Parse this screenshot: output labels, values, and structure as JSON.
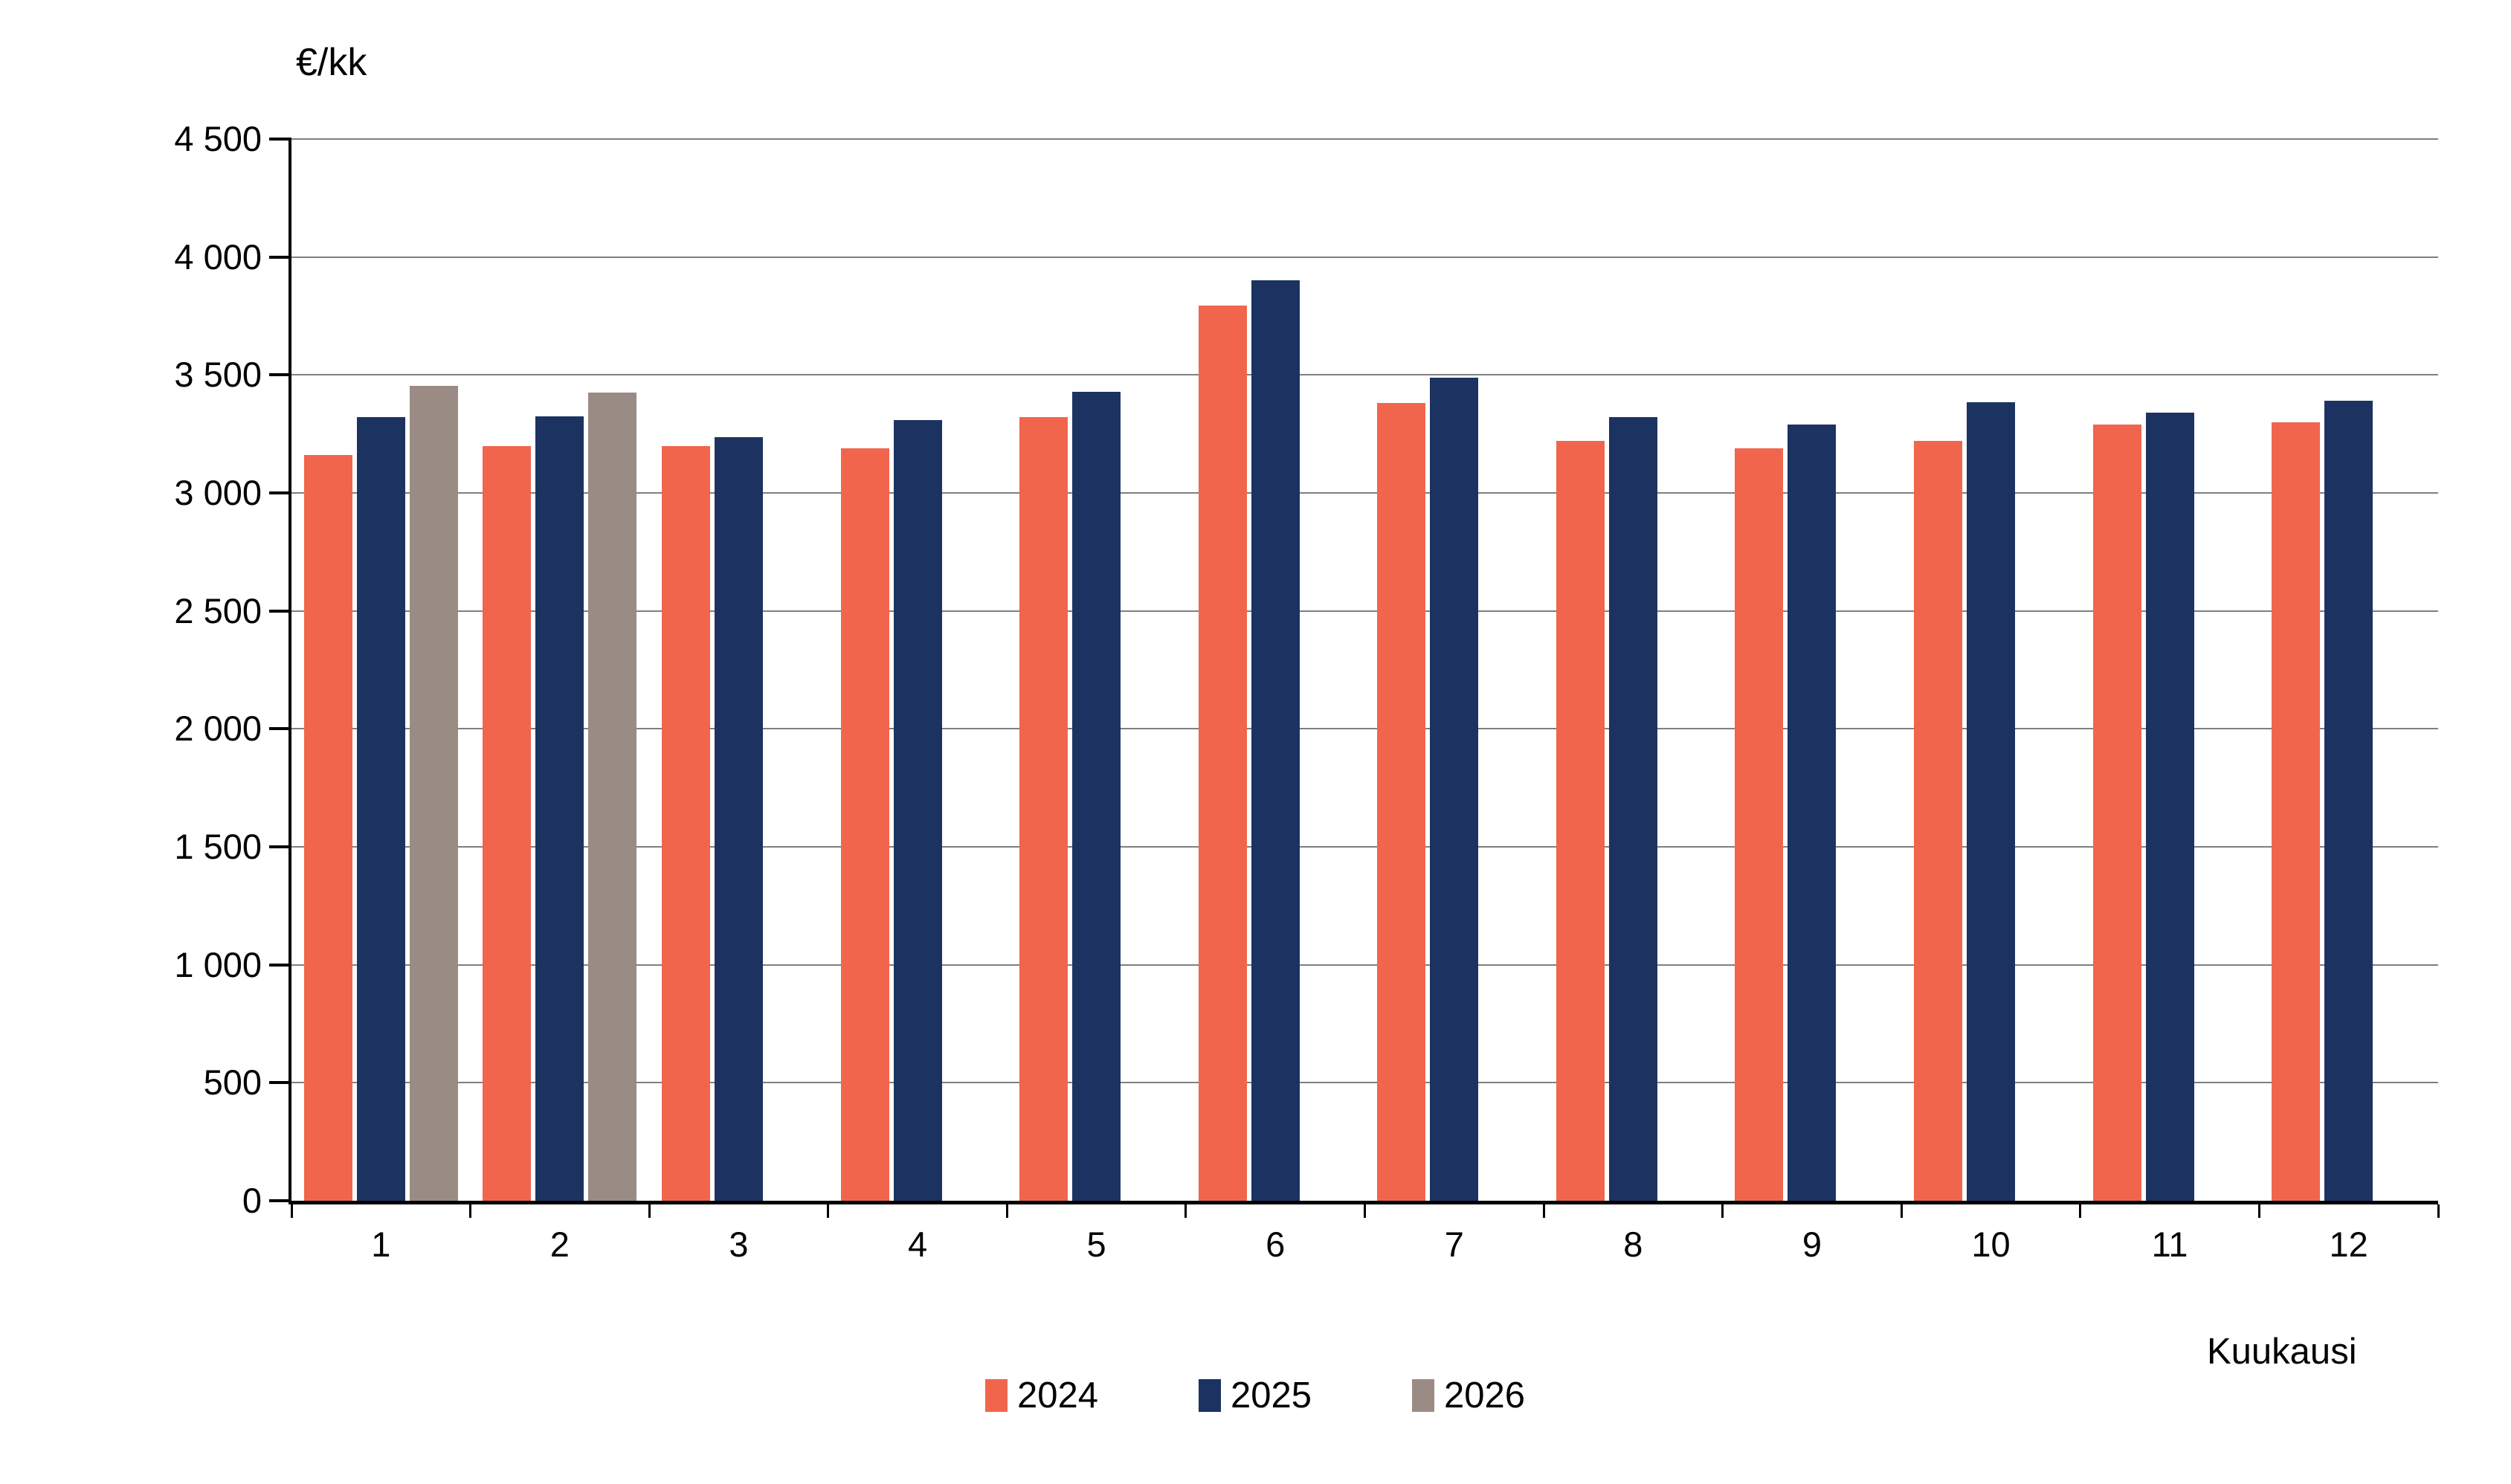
{
  "chart_data": {
    "type": "bar",
    "title": "€/kk",
    "xlabel": "Kuukausi",
    "ylabel": "€/kk",
    "categories": [
      "1",
      "2",
      "3",
      "4",
      "5",
      "6",
      "7",
      "8",
      "9",
      "10",
      "11",
      "12"
    ],
    "series": [
      {
        "name": "2024",
        "color": "#F2654D",
        "values": [
          3160,
          3200,
          3200,
          3190,
          3320,
          3795,
          3380,
          3220,
          3190,
          3220,
          3290,
          3300
        ]
      },
      {
        "name": "2025",
        "color": "#1C3362",
        "values": [
          3320,
          3325,
          3235,
          3310,
          3430,
          3900,
          3490,
          3320,
          3290,
          3385,
          3340,
          3390
        ]
      },
      {
        "name": "2026",
        "color": "#9A8C85",
        "values": [
          3455,
          3425,
          null,
          null,
          null,
          null,
          null,
          null,
          null,
          null,
          null,
          null
        ]
      }
    ],
    "ylim": [
      0,
      4500
    ],
    "yticks": [
      {
        "value": 0,
        "label": "0"
      },
      {
        "value": 500,
        "label": "500"
      },
      {
        "value": 1000,
        "label": "1 000"
      },
      {
        "value": 1500,
        "label": "1 500"
      },
      {
        "value": 2000,
        "label": "2 000"
      },
      {
        "value": 2500,
        "label": "2 500"
      },
      {
        "value": 3000,
        "label": "3 000"
      },
      {
        "value": 3500,
        "label": "3 500"
      },
      {
        "value": 4000,
        "label": "4 000"
      },
      {
        "value": 4500,
        "label": "4 500"
      }
    ],
    "grid": true,
    "legend_position": "bottom",
    "legend": [
      "2024",
      "2025",
      "2026"
    ]
  },
  "style": {
    "background": "#FFFFFF",
    "gridline_color": "#7F7F7F",
    "axis_color": "#000000",
    "text_color": "#000000"
  }
}
